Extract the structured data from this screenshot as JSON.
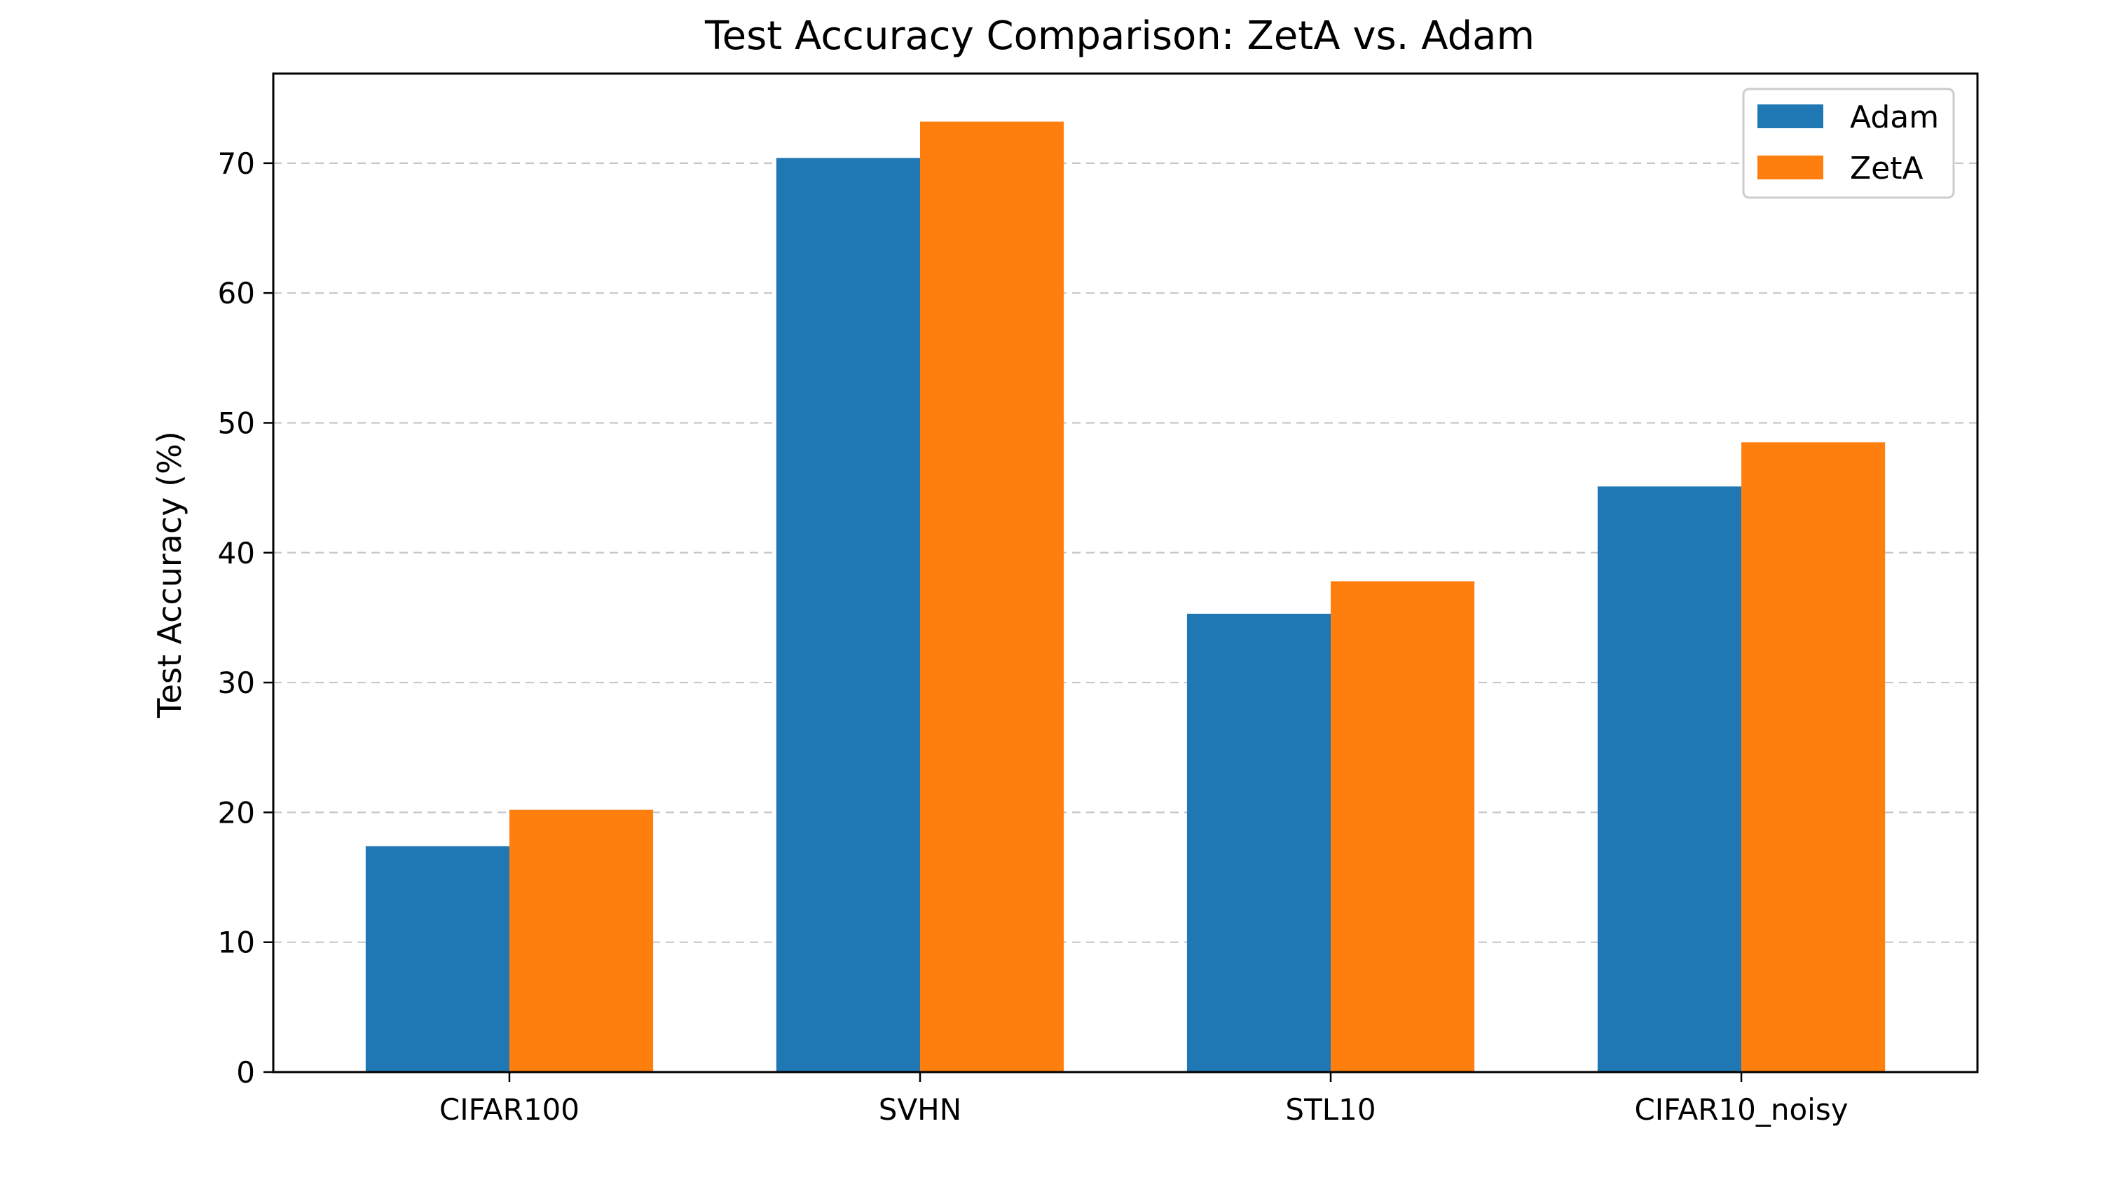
{
  "chart_data": {
    "type": "bar",
    "title": "Test Accuracy Comparison: ZetA vs. Adam",
    "xlabel": "",
    "ylabel": "Test Accuracy (%)",
    "categories": [
      "CIFAR100",
      "SVHN",
      "STL10",
      "CIFAR10_noisy"
    ],
    "series": [
      {
        "name": "Adam",
        "color": "#1f77b4",
        "values": [
          17.4,
          70.4,
          35.3,
          45.1
        ]
      },
      {
        "name": "ZetA",
        "color": "#ff7f0e",
        "values": [
          20.2,
          73.2,
          37.8,
          48.5
        ]
      }
    ],
    "ylim": [
      0,
      76.9
    ],
    "yticks": [
      0,
      10,
      20,
      30,
      40,
      50,
      60,
      70
    ],
    "grid": {
      "axis": "y",
      "style": "dashed"
    },
    "legend": {
      "position": "top-right"
    }
  }
}
